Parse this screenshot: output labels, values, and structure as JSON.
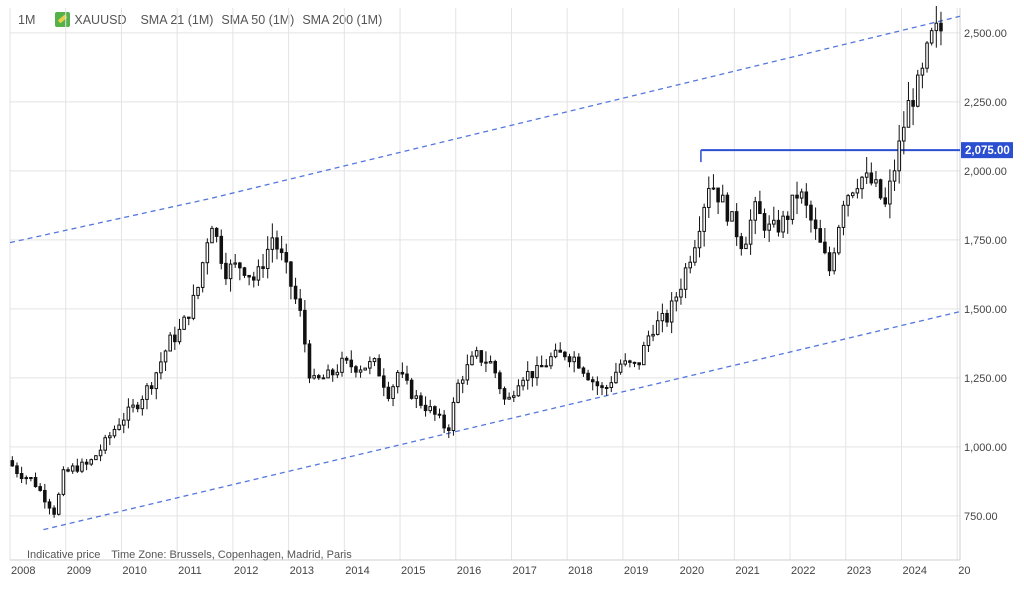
{
  "header": {
    "timeframe": "1M",
    "symbol": "XAUUSD",
    "indicators": [
      "SMA 21 (1M)",
      "SMA 50 (1M)",
      "SMA 200 (1M)"
    ]
  },
  "footer": {
    "note": "Indicative price",
    "timezone": "Time Zone: Brussels, Copenhagen, Madrid, Paris"
  },
  "chart_data": {
    "type": "candlestick",
    "symbol": "XAUUSD",
    "timeframe": "1M",
    "x_ticks": [
      "2008",
      "2009",
      "2010",
      "2011",
      "2012",
      "2013",
      "2014",
      "2015",
      "2016",
      "2017",
      "2018",
      "2019",
      "2020",
      "2021",
      "2022",
      "2023",
      "2024",
      "20"
    ],
    "y_ticks": [
      "750.00",
      "1,000.00",
      "1,250.00",
      "1,500.00",
      "1,750.00",
      "2,000.00",
      "2,250.00",
      "2,500.00"
    ],
    "y_tick_values": [
      750,
      1000,
      1250,
      1500,
      1750,
      2000,
      2250,
      2500
    ],
    "ylim": [
      590,
      2590
    ],
    "xlim": [
      2008.0,
      2025.05
    ],
    "grid": true,
    "axis_position": "right",
    "price_anchors": [
      [
        2008.0,
        950
      ],
      [
        2008.2,
        905
      ],
      [
        2008.45,
        880
      ],
      [
        2008.65,
        820
      ],
      [
        2008.85,
        760
      ],
      [
        2009.0,
        900
      ],
      [
        2009.2,
        925
      ],
      [
        2009.45,
        935
      ],
      [
        2009.7,
        1000
      ],
      [
        2010.0,
        1090
      ],
      [
        2010.3,
        1150
      ],
      [
        2010.6,
        1240
      ],
      [
        2010.9,
        1380
      ],
      [
        2011.1,
        1420
      ],
      [
        2011.4,
        1560
      ],
      [
        2011.65,
        1830
      ],
      [
        2011.9,
        1640
      ],
      [
        2012.2,
        1660
      ],
      [
        2012.45,
        1600
      ],
      [
        2012.75,
        1760
      ],
      [
        2012.95,
        1670
      ],
      [
        2013.25,
        1480
      ],
      [
        2013.45,
        1230
      ],
      [
        2013.8,
        1260
      ],
      [
        2014.0,
        1300
      ],
      [
        2014.3,
        1290
      ],
      [
        2014.6,
        1300
      ],
      [
        2014.85,
        1190
      ],
      [
        2015.0,
        1270
      ],
      [
        2015.3,
        1180
      ],
      [
        2015.6,
        1130
      ],
      [
        2015.9,
        1060
      ],
      [
        2016.1,
        1240
      ],
      [
        2016.4,
        1330
      ],
      [
        2016.7,
        1300
      ],
      [
        2016.95,
        1150
      ],
      [
        2017.2,
        1260
      ],
      [
        2017.5,
        1270
      ],
      [
        2017.75,
        1320
      ],
      [
        2018.0,
        1340
      ],
      [
        2018.2,
        1320
      ],
      [
        2018.5,
        1240
      ],
      [
        2018.7,
        1200
      ],
      [
        2019.0,
        1300
      ],
      [
        2019.3,
        1290
      ],
      [
        2019.55,
        1430
      ],
      [
        2019.85,
        1470
      ],
      [
        2020.1,
        1600
      ],
      [
        2020.35,
        1760
      ],
      [
        2020.6,
        1970
      ],
      [
        2020.9,
        1860
      ],
      [
        2021.2,
        1730
      ],
      [
        2021.4,
        1860
      ],
      [
        2021.7,
        1780
      ],
      [
        2021.95,
        1820
      ],
      [
        2022.2,
        1930
      ],
      [
        2022.45,
        1800
      ],
      [
        2022.75,
        1640
      ],
      [
        2023.0,
        1900
      ],
      [
        2023.3,
        1980
      ],
      [
        2023.55,
        1950
      ],
      [
        2023.75,
        1870
      ],
      [
        2023.95,
        2040
      ],
      [
        2024.15,
        2230
      ],
      [
        2024.4,
        2330
      ],
      [
        2024.55,
        2470
      ],
      [
        2024.7,
        2510
      ]
    ],
    "trendlines": [
      {
        "style": "dashed",
        "color": "#5577dd",
        "points": [
          [
            2008.6,
            700
          ],
          [
            2025.05,
            1490
          ]
        ]
      },
      {
        "style": "dashed",
        "color": "#5577dd",
        "points": [
          [
            2008.0,
            1740
          ],
          [
            2011.6,
            1900
          ],
          [
            2025.05,
            2560
          ]
        ]
      }
    ],
    "horizontal_level": {
      "value": 2075,
      "label": "2,075.00",
      "from_x": 2020.4,
      "color": "#2c4fd2"
    },
    "candle_color": "#000000"
  }
}
